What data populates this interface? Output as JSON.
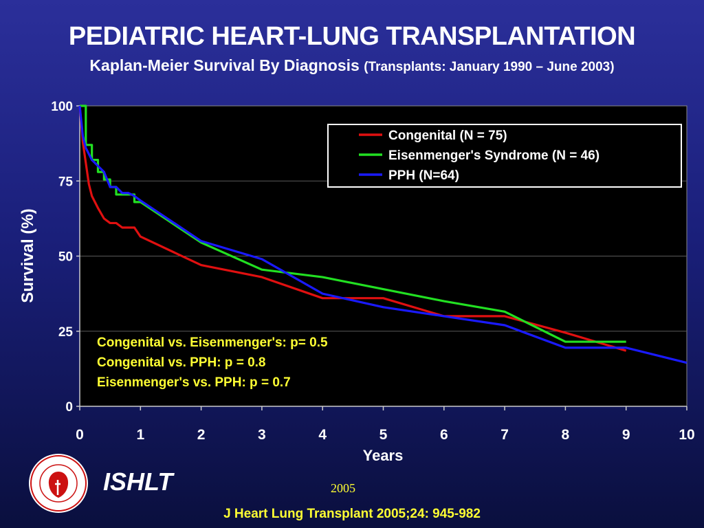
{
  "slide": {
    "title": "PEDIATRIC HEART-LUNG TRANSPLANTATION",
    "subtitle_main": "Kaplan-Meier Survival By Diagnosis",
    "subtitle_note": "(Transplants: January 1990 – June 2003)"
  },
  "footer": {
    "org": "ISHLT",
    "year": "2005",
    "citation": "J Heart Lung Transplant 2005;24: 945-982",
    "logo_text": "INTERNATIONAL SOCIETY FOR HEART & LUNG TRANSPLANTATION"
  },
  "chart_data": {
    "type": "line",
    "title": "",
    "xlabel": "Years",
    "ylabel": "Survival (%)",
    "xlim": [
      0,
      10
    ],
    "ylim": [
      0,
      100
    ],
    "xticks": [
      0,
      1,
      2,
      3,
      4,
      5,
      6,
      7,
      8,
      9,
      10
    ],
    "yticks": [
      0,
      25,
      50,
      75,
      100
    ],
    "grid": "horizontal",
    "legend_position": "top-right",
    "series": [
      {
        "name": "Congenital (N = 75)",
        "color": "#e01010",
        "step": false,
        "x": [
          0,
          0.05,
          0.15,
          0.2,
          0.3,
          0.4,
          0.5,
          0.6,
          0.7,
          0.9,
          1.0,
          2.0,
          3.0,
          4.0,
          5.0,
          6.0,
          7.0,
          8.0,
          9.0
        ],
        "y": [
          100,
          88,
          74,
          70,
          66,
          62.5,
          61,
          61,
          59.5,
          59.5,
          56.5,
          47,
          43,
          36,
          36,
          30,
          30,
          24.5,
          18.5
        ]
      },
      {
        "name": "Eisenmenger's Syndrome  (N = 46)",
        "color": "#22e022",
        "step": true,
        "x": [
          0,
          0.1,
          0.2,
          0.3,
          0.4,
          0.5,
          0.6,
          0.7,
          0.8,
          0.9,
          1.0,
          2.0,
          3.0,
          4.0,
          5.0,
          6.0,
          7.0,
          8.0,
          9.0
        ],
        "y": [
          100,
          87,
          82,
          78,
          75.5,
          73,
          70.5,
          70.5,
          70.5,
          68,
          68,
          54.5,
          45.5,
          43,
          39,
          35,
          31.5,
          21.5,
          21.5
        ]
      },
      {
        "name": "PPH (N=64)",
        "color": "#1a1aff",
        "step": false,
        "x": [
          0,
          0.05,
          0.1,
          0.2,
          0.3,
          0.4,
          0.5,
          0.6,
          0.7,
          0.8,
          0.9,
          1.0,
          2.0,
          3.0,
          4.0,
          5.0,
          6.0,
          7.0,
          8.0,
          9.0,
          10.0
        ],
        "y": [
          100,
          90,
          86,
          82,
          80,
          78,
          73,
          73,
          71,
          71,
          70,
          68.5,
          55,
          49,
          37.5,
          33,
          30,
          27,
          19.5,
          19.5,
          14.5
        ]
      }
    ],
    "annotations": [
      "Congenital vs. Eisenmenger's: p= 0.5",
      "Congenital vs. PPH: p = 0.8",
      "Eisenmenger's vs. PPH: p = 0.7"
    ],
    "annotation_color": "#ffff33"
  }
}
